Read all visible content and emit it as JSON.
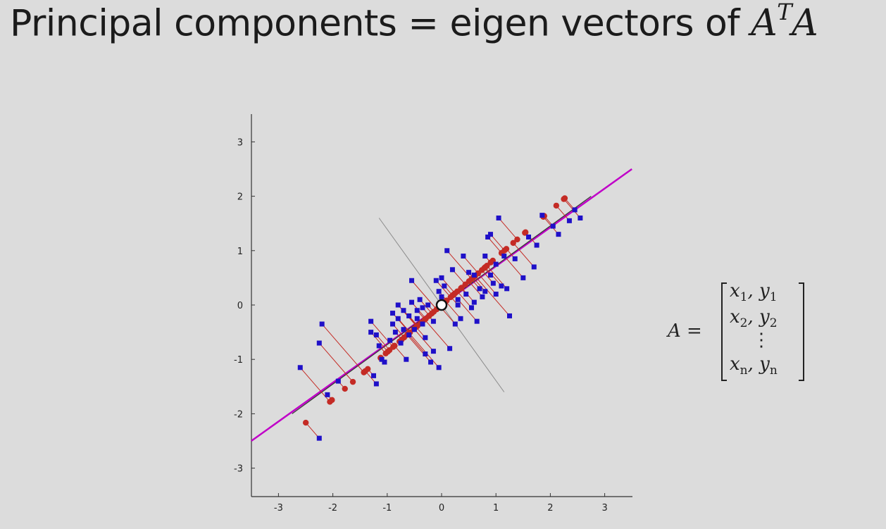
{
  "title": {
    "text": "Principal components = eigen vectors of ",
    "math_base": "A",
    "math_sup": "T",
    "math_tail": "A"
  },
  "equation": {
    "lhs": "A =",
    "rows": [
      {
        "x": "x",
        "xs": "1",
        "y": "y",
        "ys": "1"
      },
      {
        "x": "x",
        "xs": "2",
        "y": "y",
        "ys": "2"
      },
      {
        "dots": "⋮"
      },
      {
        "x": "x",
        "xs": "n",
        "y": "y",
        "ys": "n"
      }
    ]
  },
  "chart_data": {
    "type": "scatter",
    "title": "",
    "xlabel": "",
    "ylabel": "",
    "xlim": [
      -3.5,
      3.5
    ],
    "ylim": [
      -3.5,
      3.5
    ],
    "xticks": [
      "-3",
      "-2",
      "-1",
      "0",
      "1",
      "2",
      "3"
    ],
    "yticks": [
      "3",
      "2",
      "1",
      "0",
      "-1",
      "-2",
      "-3"
    ],
    "grid": false,
    "colors": {
      "points": "#1f10c8",
      "projections": "#c42b25",
      "principal_axis": "#c000c8",
      "axis_line": "#3a3a3a",
      "orthogonal_axis": "#8a8a8a"
    },
    "principal_direction": [
      0.756,
      0.655
    ],
    "mean": [
      0,
      0
    ],
    "principal_axis_segment": [
      [
        -3.5,
        -2.5
      ],
      [
        3.5,
        2.5
      ]
    ],
    "orthogonal_axis_segment": [
      [
        -1.15,
        1.6
      ],
      [
        1.15,
        -1.6
      ]
    ],
    "points": [
      [
        -2.25,
        -2.45
      ],
      [
        -2.6,
        -1.15
      ],
      [
        -2.25,
        -0.7
      ],
      [
        -2.2,
        -0.35
      ],
      [
        -2.1,
        -1.65
      ],
      [
        -1.9,
        -1.4
      ],
      [
        -1.3,
        -0.5
      ],
      [
        -1.3,
        -0.3
      ],
      [
        -1.25,
        -1.3
      ],
      [
        -1.2,
        -1.45
      ],
      [
        -1.15,
        -0.75
      ],
      [
        -1.1,
        -1.0
      ],
      [
        -1.05,
        -1.05
      ],
      [
        -0.95,
        -0.65
      ],
      [
        -0.9,
        -0.35
      ],
      [
        -0.9,
        -0.15
      ],
      [
        -0.85,
        -0.5
      ],
      [
        -0.8,
        -0.25
      ],
      [
        -0.8,
        0.0
      ],
      [
        -0.75,
        -0.7
      ],
      [
        -0.7,
        -0.1
      ],
      [
        -0.7,
        -0.45
      ],
      [
        -0.65,
        -1.0
      ],
      [
        -0.6,
        -0.55
      ],
      [
        -0.6,
        -0.2
      ],
      [
        -0.55,
        0.05
      ],
      [
        -0.55,
        0.45
      ],
      [
        -0.5,
        -0.45
      ],
      [
        -0.45,
        -0.1
      ],
      [
        -0.45,
        -0.25
      ],
      [
        -0.4,
        0.1
      ],
      [
        -0.35,
        -0.35
      ],
      [
        -0.3,
        -0.6
      ],
      [
        -0.3,
        -0.9
      ],
      [
        -0.25,
        0.0
      ],
      [
        -0.2,
        -1.05
      ],
      [
        -0.15,
        -0.85
      ],
      [
        -0.1,
        0.45
      ],
      [
        -0.05,
        -1.15
      ],
      [
        0.0,
        0.5
      ],
      [
        -0.05,
        0.25
      ],
      [
        0.05,
        0.35
      ],
      [
        0.1,
        1.0
      ],
      [
        0.15,
        -0.8
      ],
      [
        0.2,
        0.65
      ],
      [
        0.25,
        -0.35
      ],
      [
        0.3,
        0.1
      ],
      [
        0.35,
        -0.25
      ],
      [
        0.4,
        0.9
      ],
      [
        0.45,
        0.2
      ],
      [
        0.5,
        0.6
      ],
      [
        0.55,
        -0.05
      ],
      [
        0.6,
        0.55
      ],
      [
        0.65,
        -0.3
      ],
      [
        0.7,
        0.3
      ],
      [
        0.75,
        0.15
      ],
      [
        0.8,
        0.9
      ],
      [
        0.8,
        0.25
      ],
      [
        0.85,
        1.25
      ],
      [
        0.9,
        1.3
      ],
      [
        0.9,
        0.55
      ],
      [
        0.95,
        0.4
      ],
      [
        1.0,
        0.75
      ],
      [
        1.0,
        0.2
      ],
      [
        1.05,
        1.6
      ],
      [
        1.1,
        0.35
      ],
      [
        1.15,
        0.9
      ],
      [
        1.2,
        0.3
      ],
      [
        1.25,
        -0.2
      ],
      [
        1.35,
        0.85
      ],
      [
        1.5,
        0.5
      ],
      [
        1.6,
        1.25
      ],
      [
        1.7,
        0.7
      ],
      [
        1.75,
        1.1
      ],
      [
        1.85,
        1.65
      ],
      [
        2.05,
        1.45
      ],
      [
        2.15,
        1.3
      ],
      [
        2.35,
        1.55
      ],
      [
        2.45,
        1.75
      ],
      [
        2.55,
        1.6
      ],
      [
        -1.2,
        -0.55
      ],
      [
        -0.35,
        -0.05
      ],
      [
        0.0,
        0.15
      ],
      [
        0.3,
        0.0
      ],
      [
        -0.15,
        -0.3
      ],
      [
        0.6,
        0.05
      ]
    ]
  }
}
